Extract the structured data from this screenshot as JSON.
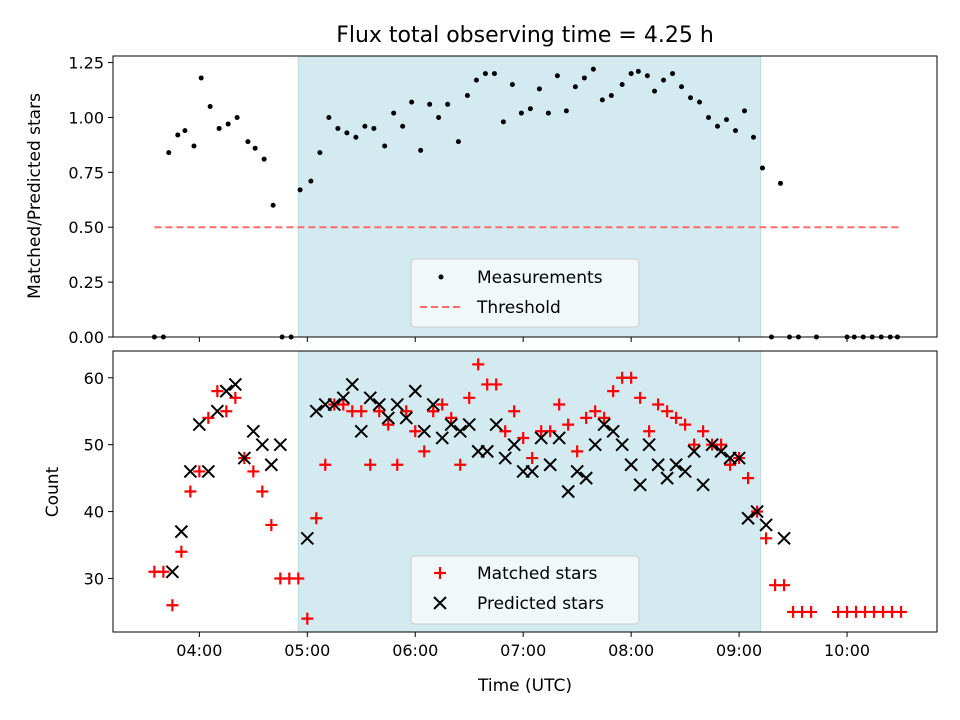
{
  "figure": {
    "title": "Flux total observing time = 4.25 h",
    "xlabel": "Time (UTC)",
    "xticks": [
      "04:00",
      "05:00",
      "06:00",
      "07:00",
      "08:00",
      "09:00",
      "10:00"
    ]
  },
  "chart_data": [
    {
      "type": "scatter",
      "ylabel": "Matched/Predicted stars",
      "xlim": [
        "03:12",
        "10:50"
      ],
      "ylim": [
        0,
        1.28
      ],
      "yticks": [
        "0.00",
        "0.25",
        "0.50",
        "0.75",
        "1.00",
        "1.25"
      ],
      "shaded_interval": [
        "04:55",
        "09:12"
      ],
      "shade_color": "#d3eaf0",
      "legend": {
        "position": "bottom-center",
        "entries": [
          "Measurements",
          "Threshold"
        ]
      },
      "threshold": {
        "name": "Threshold",
        "value": 0.5,
        "x_range": [
          "03:35",
          "10:30"
        ],
        "color": "#ff6b6b"
      },
      "series": [
        {
          "name": "Measurements",
          "color": "#000000",
          "points": [
            [
              "03:35",
              0
            ],
            [
              "03:40",
              0
            ],
            [
              "03:43",
              0.84
            ],
            [
              "03:48",
              0.92
            ],
            [
              "03:52",
              0.94
            ],
            [
              "03:57",
              0.87
            ],
            [
              "04:01",
              1.18
            ],
            [
              "04:06",
              1.05
            ],
            [
              "04:11",
              0.95
            ],
            [
              "04:16",
              0.97
            ],
            [
              "04:21",
              1.0
            ],
            [
              "04:27",
              0.89
            ],
            [
              "04:31",
              0.86
            ],
            [
              "04:36",
              0.81
            ],
            [
              "04:41",
              0.6
            ],
            [
              "04:46",
              0
            ],
            [
              "04:51",
              0
            ],
            [
              "04:56",
              0.67
            ],
            [
              "05:02",
              0.71
            ],
            [
              "05:07",
              0.84
            ],
            [
              "05:12",
              1.0
            ],
            [
              "05:17",
              0.95
            ],
            [
              "05:22",
              0.93
            ],
            [
              "05:27",
              0.91
            ],
            [
              "05:32",
              0.96
            ],
            [
              "05:37",
              0.95
            ],
            [
              "05:43",
              0.87
            ],
            [
              "05:48",
              1.02
            ],
            [
              "05:53",
              0.96
            ],
            [
              "05:58",
              1.07
            ],
            [
              "06:03",
              0.85
            ],
            [
              "06:08",
              1.06
            ],
            [
              "06:13",
              1.0
            ],
            [
              "06:18",
              1.06
            ],
            [
              "06:24",
              0.89
            ],
            [
              "06:29",
              1.1
            ],
            [
              "06:34",
              1.17
            ],
            [
              "06:39",
              1.2
            ],
            [
              "06:44",
              1.2
            ],
            [
              "06:49",
              0.98
            ],
            [
              "06:54",
              1.15
            ],
            [
              "06:59",
              1.02
            ],
            [
              "07:04",
              1.04
            ],
            [
              "07:09",
              1.13
            ],
            [
              "07:14",
              1.02
            ],
            [
              "07:19",
              1.19
            ],
            [
              "07:24",
              1.03
            ],
            [
              "07:29",
              1.14
            ],
            [
              "07:34",
              1.18
            ],
            [
              "07:39",
              1.22
            ],
            [
              "07:44",
              1.08
            ],
            [
              "07:49",
              1.1
            ],
            [
              "07:55",
              1.15
            ],
            [
              "08:00",
              1.2
            ],
            [
              "08:04",
              1.21
            ],
            [
              "08:09",
              1.19
            ],
            [
              "08:13",
              1.12
            ],
            [
              "08:18",
              1.17
            ],
            [
              "08:23",
              1.2
            ],
            [
              "08:28",
              1.14
            ],
            [
              "08:33",
              1.09
            ],
            [
              "08:38",
              1.07
            ],
            [
              "08:43",
              1.0
            ],
            [
              "08:48",
              0.96
            ],
            [
              "08:53",
              0.99
            ],
            [
              "08:58",
              0.94
            ],
            [
              "09:03",
              1.03
            ],
            [
              "09:08",
              0.91
            ],
            [
              "09:13",
              0.77
            ],
            [
              "09:18",
              0
            ],
            [
              "09:23",
              0.7
            ],
            [
              "09:28",
              0
            ],
            [
              "09:33",
              0
            ],
            [
              "09:43",
              0
            ],
            [
              "10:00",
              0
            ],
            [
              "10:04",
              0
            ],
            [
              "10:09",
              0
            ],
            [
              "10:14",
              0
            ],
            [
              "10:19",
              0
            ],
            [
              "10:24",
              0
            ],
            [
              "10:28",
              0
            ]
          ]
        }
      ]
    },
    {
      "type": "scatter",
      "ylabel": "Count",
      "xlim": [
        "03:12",
        "10:50"
      ],
      "ylim": [
        22,
        64
      ],
      "yticks": [
        "30",
        "40",
        "50",
        "60"
      ],
      "shaded_interval": [
        "04:55",
        "09:12"
      ],
      "shade_color": "#d3eaf0",
      "legend": {
        "position": "bottom-center",
        "entries": [
          "Matched stars",
          "Predicted stars"
        ]
      },
      "series": [
        {
          "name": "Matched stars",
          "marker": "plus",
          "color": "#ff0000",
          "points": [
            [
              "03:35",
              31
            ],
            [
              "03:40",
              31
            ],
            [
              "03:45",
              26
            ],
            [
              "03:50",
              34
            ],
            [
              "03:55",
              43
            ],
            [
              "04:00",
              46
            ],
            [
              "04:05",
              54
            ],
            [
              "04:10",
              58
            ],
            [
              "04:15",
              55
            ],
            [
              "04:20",
              57
            ],
            [
              "04:25",
              48
            ],
            [
              "04:30",
              46
            ],
            [
              "04:35",
              43
            ],
            [
              "04:40",
              38
            ],
            [
              "04:45",
              30
            ],
            [
              "04:50",
              30
            ],
            [
              "04:55",
              30
            ],
            [
              "05:00",
              24
            ],
            [
              "05:05",
              39
            ],
            [
              "05:10",
              47
            ],
            [
              "05:15",
              56
            ],
            [
              "05:20",
              56
            ],
            [
              "05:25",
              55
            ],
            [
              "05:30",
              55
            ],
            [
              "05:35",
              47
            ],
            [
              "05:40",
              55
            ],
            [
              "05:45",
              53
            ],
            [
              "05:50",
              47
            ],
            [
              "05:55",
              55
            ],
            [
              "06:00",
              52
            ],
            [
              "06:05",
              49
            ],
            [
              "06:10",
              55
            ],
            [
              "06:15",
              56
            ],
            [
              "06:20",
              54
            ],
            [
              "06:25",
              47
            ],
            [
              "06:30",
              57
            ],
            [
              "06:35",
              62
            ],
            [
              "06:40",
              59
            ],
            [
              "06:45",
              59
            ],
            [
              "06:50",
              52
            ],
            [
              "06:55",
              55
            ],
            [
              "07:00",
              51
            ],
            [
              "07:05",
              48
            ],
            [
              "07:10",
              52
            ],
            [
              "07:15",
              52
            ],
            [
              "07:20",
              56
            ],
            [
              "07:25",
              53
            ],
            [
              "07:30",
              49
            ],
            [
              "07:35",
              54
            ],
            [
              "07:40",
              55
            ],
            [
              "07:45",
              54
            ],
            [
              "07:50",
              58
            ],
            [
              "07:55",
              60
            ],
            [
              "08:00",
              60
            ],
            [
              "08:05",
              57
            ],
            [
              "08:10",
              52
            ],
            [
              "08:15",
              56
            ],
            [
              "08:20",
              55
            ],
            [
              "08:25",
              54
            ],
            [
              "08:30",
              53
            ],
            [
              "08:35",
              50
            ],
            [
              "08:40",
              52
            ],
            [
              "08:45",
              50
            ],
            [
              "08:50",
              50
            ],
            [
              "08:55",
              47
            ],
            [
              "09:00",
              48
            ],
            [
              "09:05",
              45
            ],
            [
              "09:10",
              40
            ],
            [
              "09:15",
              36
            ],
            [
              "09:20",
              29
            ],
            [
              "09:25",
              29
            ],
            [
              "09:30",
              25
            ],
            [
              "09:35",
              25
            ],
            [
              "09:40",
              25
            ],
            [
              "09:55",
              25
            ],
            [
              "10:00",
              25
            ],
            [
              "10:05",
              25
            ],
            [
              "10:10",
              25
            ],
            [
              "10:15",
              25
            ],
            [
              "10:20",
              25
            ],
            [
              "10:25",
              25
            ],
            [
              "10:30",
              25
            ]
          ]
        },
        {
          "name": "Predicted stars",
          "marker": "cross",
          "color": "#000000",
          "points": [
            [
              "03:45",
              31
            ],
            [
              "03:50",
              37
            ],
            [
              "03:55",
              46
            ],
            [
              "04:00",
              53
            ],
            [
              "04:05",
              46
            ],
            [
              "04:10",
              55
            ],
            [
              "04:15",
              58
            ],
            [
              "04:20",
              59
            ],
            [
              "04:25",
              48
            ],
            [
              "04:30",
              52
            ],
            [
              "04:35",
              50
            ],
            [
              "04:40",
              47
            ],
            [
              "04:45",
              50
            ],
            [
              "05:00",
              36
            ],
            [
              "05:05",
              55
            ],
            [
              "05:10",
              56
            ],
            [
              "05:15",
              56
            ],
            [
              "05:20",
              57
            ],
            [
              "05:25",
              59
            ],
            [
              "05:30",
              52
            ],
            [
              "05:35",
              57
            ],
            [
              "05:40",
              56
            ],
            [
              "05:45",
              54
            ],
            [
              "05:50",
              56
            ],
            [
              "05:55",
              54
            ],
            [
              "06:00",
              58
            ],
            [
              "06:05",
              52
            ],
            [
              "06:10",
              56
            ],
            [
              "06:15",
              51
            ],
            [
              "06:20",
              53
            ],
            [
              "06:25",
              52
            ],
            [
              "06:30",
              53
            ],
            [
              "06:35",
              49
            ],
            [
              "06:40",
              49
            ],
            [
              "06:45",
              53
            ],
            [
              "06:50",
              48
            ],
            [
              "06:55",
              50
            ],
            [
              "07:00",
              46
            ],
            [
              "07:05",
              46
            ],
            [
              "07:10",
              51
            ],
            [
              "07:15",
              47
            ],
            [
              "07:20",
              51
            ],
            [
              "07:25",
              43
            ],
            [
              "07:30",
              46
            ],
            [
              "07:35",
              45
            ],
            [
              "07:40",
              50
            ],
            [
              "07:45",
              53
            ],
            [
              "07:50",
              52
            ],
            [
              "07:55",
              50
            ],
            [
              "08:00",
              47
            ],
            [
              "08:05",
              44
            ],
            [
              "08:10",
              50
            ],
            [
              "08:15",
              47
            ],
            [
              "08:20",
              45
            ],
            [
              "08:25",
              47
            ],
            [
              "08:30",
              46
            ],
            [
              "08:35",
              49
            ],
            [
              "08:40",
              44
            ],
            [
              "08:45",
              50
            ],
            [
              "08:50",
              49
            ],
            [
              "08:55",
              48
            ],
            [
              "09:00",
              48
            ],
            [
              "09:05",
              39
            ],
            [
              "09:10",
              40
            ],
            [
              "09:15",
              38
            ],
            [
              "09:25",
              36
            ]
          ]
        }
      ]
    }
  ]
}
